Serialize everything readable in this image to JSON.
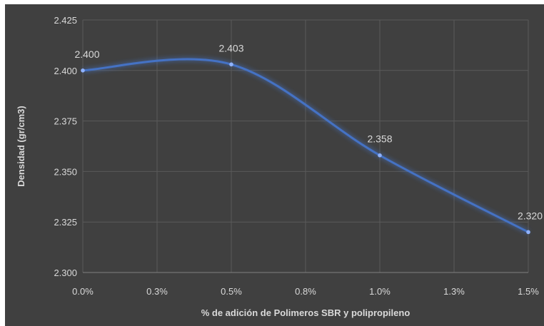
{
  "chart_data": {
    "type": "line",
    "x_tick_labels": [
      "0.0%",
      "0.3%",
      "0.5%",
      "0.8%",
      "1.0%",
      "1.3%",
      "1.5%"
    ],
    "y_tick_labels": [
      "2.300",
      "2.325",
      "2.350",
      "2.375",
      "2.400",
      "2.425"
    ],
    "ylim": [
      2.3,
      2.425
    ],
    "xlim": [
      0,
      1.5
    ],
    "x_unit": "%",
    "series": [
      {
        "x": [
          0.0,
          0.5,
          1.0,
          1.5
        ],
        "values": [
          2.4,
          2.403,
          2.358,
          2.32
        ],
        "data_labels": [
          "2.400",
          "2.403",
          "2.358",
          "2.320"
        ]
      }
    ],
    "xlabel": "% de adición de Polimeros SBR y polipropileno",
    "ylabel": "Densidad (gr/cm3)",
    "grid": true,
    "smooth": true,
    "colors": {
      "background": "#404040",
      "line": "#4472C4",
      "marker": "#8fb2ff",
      "grid": "#5a5a5a",
      "text": "#d9d9d9"
    }
  }
}
